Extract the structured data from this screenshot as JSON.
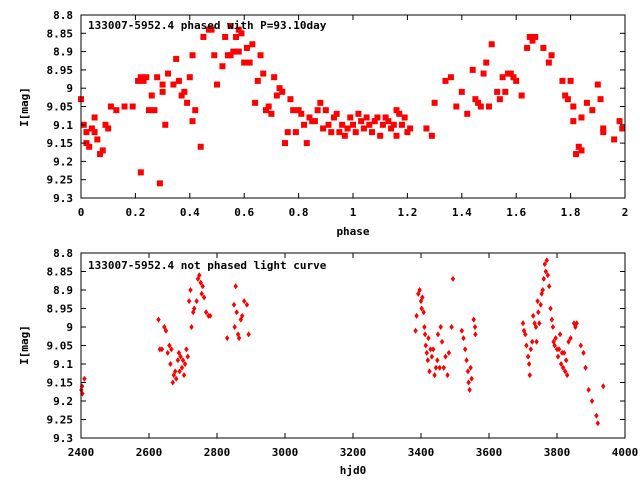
{
  "chart_data": [
    {
      "type": "scatter",
      "title": "133007-5952.4 phased with P=93.10day",
      "xlabel": "phase",
      "ylabel": "I[mag]",
      "xlim": [
        0,
        2
      ],
      "ylim": [
        9.3,
        8.8
      ],
      "y_inverted": true,
      "grid": false,
      "marker": "square",
      "color": "#ff0000",
      "x_ticks": [
        "0",
        "0.2",
        "0.4",
        "0.6",
        "0.8",
        "1",
        "1.2",
        "1.4",
        "1.6",
        "1.8",
        "2"
      ],
      "y_ticks": [
        "8.8",
        "8.85",
        "8.9",
        "8.95",
        "9",
        "9.05",
        "9.1",
        "9.15",
        "9.2",
        "9.25",
        "9.3"
      ],
      "points": [
        [
          0.0,
          9.03
        ],
        [
          0.01,
          9.1
        ],
        [
          0.02,
          9.12
        ],
        [
          0.02,
          9.15
        ],
        [
          0.03,
          9.16
        ],
        [
          0.04,
          9.11
        ],
        [
          0.05,
          9.12
        ],
        [
          0.05,
          9.08
        ],
        [
          0.06,
          9.14
        ],
        [
          0.07,
          9.18
        ],
        [
          0.08,
          9.17
        ],
        [
          0.09,
          9.1
        ],
        [
          0.1,
          9.11
        ],
        [
          0.11,
          9.05
        ],
        [
          0.13,
          9.06
        ],
        [
          0.16,
          9.05
        ],
        [
          0.19,
          9.05
        ],
        [
          0.21,
          8.98
        ],
        [
          0.22,
          8.97
        ],
        [
          0.23,
          8.98
        ],
        [
          0.24,
          8.97
        ],
        [
          0.25,
          9.06
        ],
        [
          0.26,
          9.02
        ],
        [
          0.27,
          9.06
        ],
        [
          0.28,
          8.97
        ],
        [
          0.3,
          8.99
        ],
        [
          0.3,
          9.01
        ],
        [
          0.31,
          9.1
        ],
        [
          0.32,
          8.96
        ],
        [
          0.34,
          8.99
        ],
        [
          0.35,
          8.92
        ],
        [
          0.36,
          8.98
        ],
        [
          0.37,
          9.02
        ],
        [
          0.38,
          9.01
        ],
        [
          0.39,
          9.04
        ],
        [
          0.4,
          8.97
        ],
        [
          0.41,
          9.09
        ],
        [
          0.42,
          9.06
        ],
        [
          0.41,
          8.91
        ],
        [
          0.44,
          9.16
        ],
        [
          0.45,
          8.86
        ],
        [
          0.47,
          8.84
        ],
        [
          0.48,
          8.84
        ],
        [
          0.49,
          8.91
        ],
        [
          0.5,
          8.99
        ],
        [
          0.52,
          8.94
        ],
        [
          0.53,
          8.86
        ],
        [
          0.54,
          8.91
        ],
        [
          0.55,
          8.91
        ],
        [
          0.55,
          8.83
        ],
        [
          0.56,
          8.9
        ],
        [
          0.57,
          8.86
        ],
        [
          0.58,
          8.9
        ],
        [
          0.58,
          8.84
        ],
        [
          0.59,
          8.85
        ],
        [
          0.6,
          8.93
        ],
        [
          0.61,
          8.89
        ],
        [
          0.62,
          8.93
        ],
        [
          0.63,
          8.88
        ],
        [
          0.64,
          9.04
        ],
        [
          0.65,
          8.98
        ],
        [
          0.66,
          8.91
        ],
        [
          0.67,
          8.96
        ],
        [
          0.68,
          9.06
        ],
        [
          0.69,
          9.05
        ],
        [
          0.7,
          9.07
        ],
        [
          0.71,
          8.97
        ],
        [
          0.72,
          9.02
        ],
        [
          0.73,
          9.0
        ],
        [
          0.74,
          9.01
        ],
        [
          0.75,
          9.15
        ],
        [
          0.76,
          9.12
        ],
        [
          0.77,
          9.03
        ],
        [
          0.78,
          9.06
        ],
        [
          0.79,
          9.12
        ],
        [
          0.8,
          9.06
        ],
        [
          0.81,
          9.07
        ],
        [
          0.82,
          9.1
        ],
        [
          0.83,
          9.15
        ],
        [
          0.84,
          9.08
        ],
        [
          0.85,
          9.09
        ],
        [
          0.86,
          9.09
        ],
        [
          0.87,
          9.06
        ],
        [
          0.88,
          9.04
        ],
        [
          0.89,
          9.11
        ],
        [
          0.9,
          9.06
        ],
        [
          0.91,
          9.1
        ],
        [
          0.92,
          9.12
        ],
        [
          0.93,
          9.08
        ],
        [
          0.94,
          9.07
        ],
        [
          0.95,
          9.12
        ],
        [
          0.96,
          9.1
        ],
        [
          0.97,
          9.13
        ],
        [
          0.98,
          9.11
        ],
        [
          0.99,
          9.08
        ],
        [
          1.0,
          9.1
        ],
        [
          1.01,
          9.12
        ],
        [
          1.02,
          9.07
        ],
        [
          1.03,
          9.09
        ],
        [
          1.04,
          9.11
        ],
        [
          1.05,
          9.08
        ],
        [
          1.06,
          9.1
        ],
        [
          1.07,
          9.12
        ],
        [
          1.08,
          9.09
        ],
        [
          1.09,
          9.08
        ],
        [
          1.1,
          9.13
        ],
        [
          1.11,
          9.1
        ],
        [
          1.12,
          9.08
        ],
        [
          1.13,
          9.09
        ],
        [
          1.14,
          9.11
        ],
        [
          1.15,
          9.1
        ],
        [
          1.16,
          9.13
        ],
        [
          1.17,
          9.07
        ],
        [
          1.18,
          9.1
        ],
        [
          1.19,
          9.08
        ],
        [
          1.2,
          9.12
        ],
        [
          1.21,
          9.11
        ],
        [
          1.16,
          9.06
        ],
        [
          1.27,
          9.11
        ],
        [
          1.29,
          9.13
        ],
        [
          1.3,
          9.04
        ],
        [
          1.34,
          8.98
        ],
        [
          1.36,
          8.97
        ],
        [
          1.38,
          9.05
        ],
        [
          1.4,
          9.01
        ],
        [
          1.42,
          9.07
        ],
        [
          1.44,
          8.95
        ],
        [
          1.45,
          9.03
        ],
        [
          1.46,
          9.04
        ],
        [
          1.47,
          9.05
        ],
        [
          1.48,
          8.96
        ],
        [
          1.49,
          8.93
        ],
        [
          1.5,
          9.05
        ],
        [
          1.51,
          8.88
        ],
        [
          1.53,
          9.01
        ],
        [
          1.54,
          9.03
        ],
        [
          1.55,
          8.97
        ],
        [
          1.56,
          9.01
        ],
        [
          1.57,
          8.96
        ],
        [
          1.58,
          8.96
        ],
        [
          1.59,
          8.97
        ],
        [
          1.6,
          8.98
        ],
        [
          1.62,
          9.02
        ],
        [
          1.64,
          8.89
        ],
        [
          1.65,
          8.86
        ],
        [
          1.66,
          8.87
        ],
        [
          1.67,
          8.86
        ],
        [
          1.7,
          8.89
        ],
        [
          1.72,
          8.93
        ],
        [
          1.73,
          8.91
        ],
        [
          1.77,
          8.98
        ],
        [
          1.78,
          9.02
        ],
        [
          1.79,
          9.03
        ],
        [
          1.8,
          8.98
        ],
        [
          1.81,
          9.09
        ],
        [
          1.81,
          9.05
        ],
        [
          1.82,
          9.18
        ],
        [
          1.83,
          9.16
        ],
        [
          1.84,
          9.08
        ],
        [
          1.84,
          9.17
        ],
        [
          1.86,
          9.04
        ],
        [
          1.88,
          9.06
        ],
        [
          1.9,
          8.99
        ],
        [
          1.91,
          9.03
        ],
        [
          1.92,
          9.12
        ],
        [
          1.92,
          9.11
        ],
        [
          1.96,
          9.14
        ],
        [
          1.98,
          9.09
        ],
        [
          1.99,
          9.11
        ]
      ],
      "outliers": [
        [
          0.22,
          9.23
        ],
        [
          0.29,
          9.26
        ]
      ]
    },
    {
      "type": "scatter",
      "title": "133007-5952.4 not phased light curve",
      "xlabel": "hjd0",
      "ylabel": "I[mag]",
      "xlim": [
        2400,
        4000
      ],
      "ylim": [
        9.3,
        8.8
      ],
      "y_inverted": true,
      "grid": false,
      "marker": "diamond",
      "color": "#ff0000",
      "x_ticks": [
        "2400",
        "2600",
        "2800",
        "3000",
        "3200",
        "3400",
        "3600",
        "3800",
        "4000"
      ],
      "y_ticks": [
        "8.8",
        "8.85",
        "8.9",
        "8.95",
        "9",
        "9.05",
        "9.1",
        "9.15",
        "9.2",
        "9.25",
        "9.3"
      ],
      "points": [
        [
          2401,
          9.17
        ],
        [
          2403,
          9.16
        ],
        [
          2404,
          9.18
        ],
        [
          2410,
          9.14
        ],
        [
          2628,
          8.98
        ],
        [
          2632,
          9.06
        ],
        [
          2638,
          9.06
        ],
        [
          2645,
          9.0
        ],
        [
          2650,
          9.01
        ],
        [
          2655,
          9.07
        ],
        [
          2660,
          9.05
        ],
        [
          2663,
          9.1
        ],
        [
          2666,
          9.06
        ],
        [
          2670,
          9.15
        ],
        [
          2673,
          9.13
        ],
        [
          2677,
          9.12
        ],
        [
          2680,
          9.14
        ],
        [
          2685,
          9.09
        ],
        [
          2688,
          9.07
        ],
        [
          2690,
          9.12
        ],
        [
          2693,
          9.08
        ],
        [
          2697,
          9.11
        ],
        [
          2700,
          9.09
        ],
        [
          2703,
          9.13
        ],
        [
          2706,
          9.1
        ],
        [
          2710,
          9.06
        ],
        [
          2714,
          9.08
        ],
        [
          2718,
          8.93
        ],
        [
          2722,
          8.9
        ],
        [
          2725,
          9.0
        ],
        [
          2730,
          8.96
        ],
        [
          2733,
          8.95
        ],
        [
          2740,
          8.93
        ],
        [
          2744,
          8.87
        ],
        [
          2748,
          8.86
        ],
        [
          2752,
          8.88
        ],
        [
          2755,
          8.91
        ],
        [
          2758,
          8.89
        ],
        [
          2762,
          8.92
        ],
        [
          2768,
          8.96
        ],
        [
          2775,
          8.97
        ],
        [
          2780,
          8.97
        ],
        [
          2830,
          9.03
        ],
        [
          2850,
          8.94
        ],
        [
          2852,
          9.0
        ],
        [
          2855,
          8.89
        ],
        [
          2858,
          8.96
        ],
        [
          2862,
          9.02
        ],
        [
          2865,
          9.03
        ],
        [
          2870,
          8.98
        ],
        [
          2874,
          8.97
        ],
        [
          2880,
          8.93
        ],
        [
          2888,
          8.94
        ],
        [
          2893,
          9.02
        ],
        [
          3384,
          9.01
        ],
        [
          3387,
          8.97
        ],
        [
          3392,
          8.91
        ],
        [
          3396,
          8.9
        ],
        [
          3400,
          8.93
        ],
        [
          3402,
          8.95
        ],
        [
          3404,
          8.92
        ],
        [
          3408,
          8.96
        ],
        [
          3410,
          9.0
        ],
        [
          3412,
          9.02
        ],
        [
          3414,
          9.05
        ],
        [
          3417,
          9.07
        ],
        [
          3420,
          9.09
        ],
        [
          3422,
          9.03
        ],
        [
          3425,
          9.12
        ],
        [
          3428,
          9.06
        ],
        [
          3432,
          9.08
        ],
        [
          3436,
          9.06
        ],
        [
          3440,
          9.13
        ],
        [
          3444,
          9.11
        ],
        [
          3448,
          9.09
        ],
        [
          3450,
          9.02
        ],
        [
          3455,
          9.11
        ],
        [
          3458,
          9.0
        ],
        [
          3462,
          9.04
        ],
        [
          3467,
          9.11
        ],
        [
          3472,
          9.08
        ],
        [
          3478,
          9.13
        ],
        [
          3482,
          9.07
        ],
        [
          3490,
          9.0
        ],
        [
          3494,
          8.87
        ],
        [
          3520,
          9.01
        ],
        [
          3525,
          9.03
        ],
        [
          3530,
          9.06
        ],
        [
          3534,
          9.09
        ],
        [
          3538,
          9.12
        ],
        [
          3540,
          9.15
        ],
        [
          3543,
          9.17
        ],
        [
          3546,
          9.11
        ],
        [
          3549,
          9.14
        ],
        [
          3555,
          8.98
        ],
        [
          3559,
          9.0
        ],
        [
          3560,
          9.02
        ],
        [
          3700,
          8.99
        ],
        [
          3703,
          9.01
        ],
        [
          3707,
          9.02
        ],
        [
          3710,
          9.05
        ],
        [
          3715,
          9.08
        ],
        [
          3718,
          9.1
        ],
        [
          3720,
          9.13
        ],
        [
          3723,
          9.06
        ],
        [
          3727,
          9.04
        ],
        [
          3730,
          8.97
        ],
        [
          3734,
          8.99
        ],
        [
          3738,
          9.0
        ],
        [
          3740,
          9.04
        ],
        [
          3743,
          8.93
        ],
        [
          3745,
          8.96
        ],
        [
          3748,
          8.99
        ],
        [
          3752,
          8.94
        ],
        [
          3755,
          8.91
        ],
        [
          3758,
          8.9
        ],
        [
          3761,
          8.87
        ],
        [
          3764,
          8.83
        ],
        [
          3767,
          8.85
        ],
        [
          3770,
          8.82
        ],
        [
          3773,
          8.86
        ],
        [
          3777,
          8.89
        ],
        [
          3781,
          8.95
        ],
        [
          3785,
          8.98
        ],
        [
          3788,
          9.0
        ],
        [
          3790,
          9.04
        ],
        [
          3793,
          9.05
        ],
        [
          3796,
          9.03
        ],
        [
          3800,
          9.06
        ],
        [
          3803,
          9.08
        ],
        [
          3806,
          9.06
        ],
        [
          3809,
          9.02
        ],
        [
          3812,
          9.1
        ],
        [
          3815,
          9.07
        ],
        [
          3818,
          9.11
        ],
        [
          3821,
          9.07
        ],
        [
          3824,
          9.12
        ],
        [
          3827,
          9.09
        ],
        [
          3830,
          9.13
        ],
        [
          3834,
          9.04
        ],
        [
          3840,
          9.03
        ],
        [
          3850,
          8.99
        ],
        [
          3854,
          9.0
        ],
        [
          3858,
          8.99
        ],
        [
          3870,
          9.05
        ],
        [
          3878,
          9.07
        ],
        [
          3884,
          9.11
        ],
        [
          3893,
          9.17
        ],
        [
          3903,
          9.2
        ],
        [
          3916,
          9.24
        ],
        [
          3920,
          9.26
        ],
        [
          3936,
          9.16
        ]
      ]
    }
  ]
}
